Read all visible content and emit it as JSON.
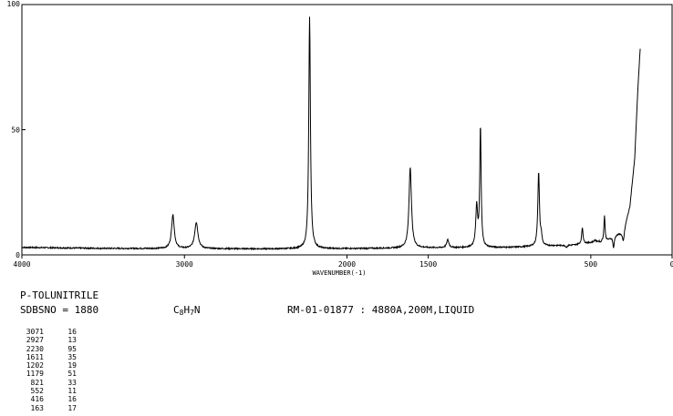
{
  "compound": {
    "name": "P-TOLUNITRILE",
    "sdbsno": "SDBSNO = 1880",
    "formula_main": "C",
    "formula_c_sub": "8",
    "formula_h": "H",
    "formula_h_sub": "7",
    "formula_n": "N",
    "measurement": "RM-01-01877 : 4880A,200M,LIQUID"
  },
  "chart_data": {
    "type": "line",
    "xlabel": "WAVENUMBER(-1)",
    "ylabel": "",
    "xlim": [
      4000,
      0
    ],
    "ylim": [
      0,
      100
    ],
    "xticks": [
      4000,
      3000,
      2000,
      1500,
      500,
      0
    ],
    "xtick_labels": [
      "4000",
      "3000",
      "2000",
      "1500",
      "500",
      "0"
    ],
    "yticks": [
      0,
      50,
      100
    ],
    "ytick_labels": [
      "0",
      "50",
      "100"
    ],
    "baseline": [
      [
        4000,
        3.0
      ],
      [
        3500,
        2.6
      ],
      [
        2500,
        2.4
      ],
      [
        2000,
        2.5
      ],
      [
        1500,
        2.8
      ],
      [
        1000,
        3.0
      ],
      [
        600,
        4.0
      ],
      [
        400,
        6.0
      ],
      [
        300,
        10.0
      ],
      [
        260,
        20.0
      ],
      [
        230,
        40.0
      ],
      [
        210,
        70.0
      ],
      [
        195,
        90.0
      ]
    ],
    "series": [
      {
        "peaks": [
          {
            "x": 3071,
            "y": 16,
            "w": 10
          },
          {
            "x": 2927,
            "y": 13,
            "w": 12
          },
          {
            "x": 2230,
            "y": 95,
            "w": 6
          },
          {
            "x": 1611,
            "y": 35,
            "w": 9
          },
          {
            "x": 1380,
            "y": 6,
            "w": 8
          },
          {
            "x": 1202,
            "y": 19,
            "w": 7
          },
          {
            "x": 1179,
            "y": 51,
            "w": 5
          },
          {
            "x": 821,
            "y": 33,
            "w": 6
          },
          {
            "x": 805,
            "y": 7,
            "w": 5
          },
          {
            "x": 650,
            "y": 3,
            "w": 6
          },
          {
            "x": 552,
            "y": 11,
            "w": 5
          },
          {
            "x": 475,
            "y": 6,
            "w": 6
          },
          {
            "x": 416,
            "y": 16,
            "w": 4
          },
          {
            "x": 440,
            "y": 5,
            "w": 5
          },
          {
            "x": 360,
            "y": 3,
            "w": 5
          },
          {
            "x": 300,
            "y": 6,
            "w": 8
          },
          {
            "x": 163,
            "y": 17,
            "w": 10
          }
        ]
      }
    ],
    "peak_table": [
      {
        "x": "3071",
        "y": "16"
      },
      {
        "x": "2927",
        "y": "13"
      },
      {
        "x": "2230",
        "y": "95"
      },
      {
        "x": "1611",
        "y": "35"
      },
      {
        "x": "1202",
        "y": "19"
      },
      {
        "x": "1179",
        "y": "51"
      },
      {
        "x": "821",
        "y": "33"
      },
      {
        "x": "552",
        "y": "11"
      },
      {
        "x": "416",
        "y": "16"
      },
      {
        "x": "163",
        "y": "17"
      }
    ]
  }
}
